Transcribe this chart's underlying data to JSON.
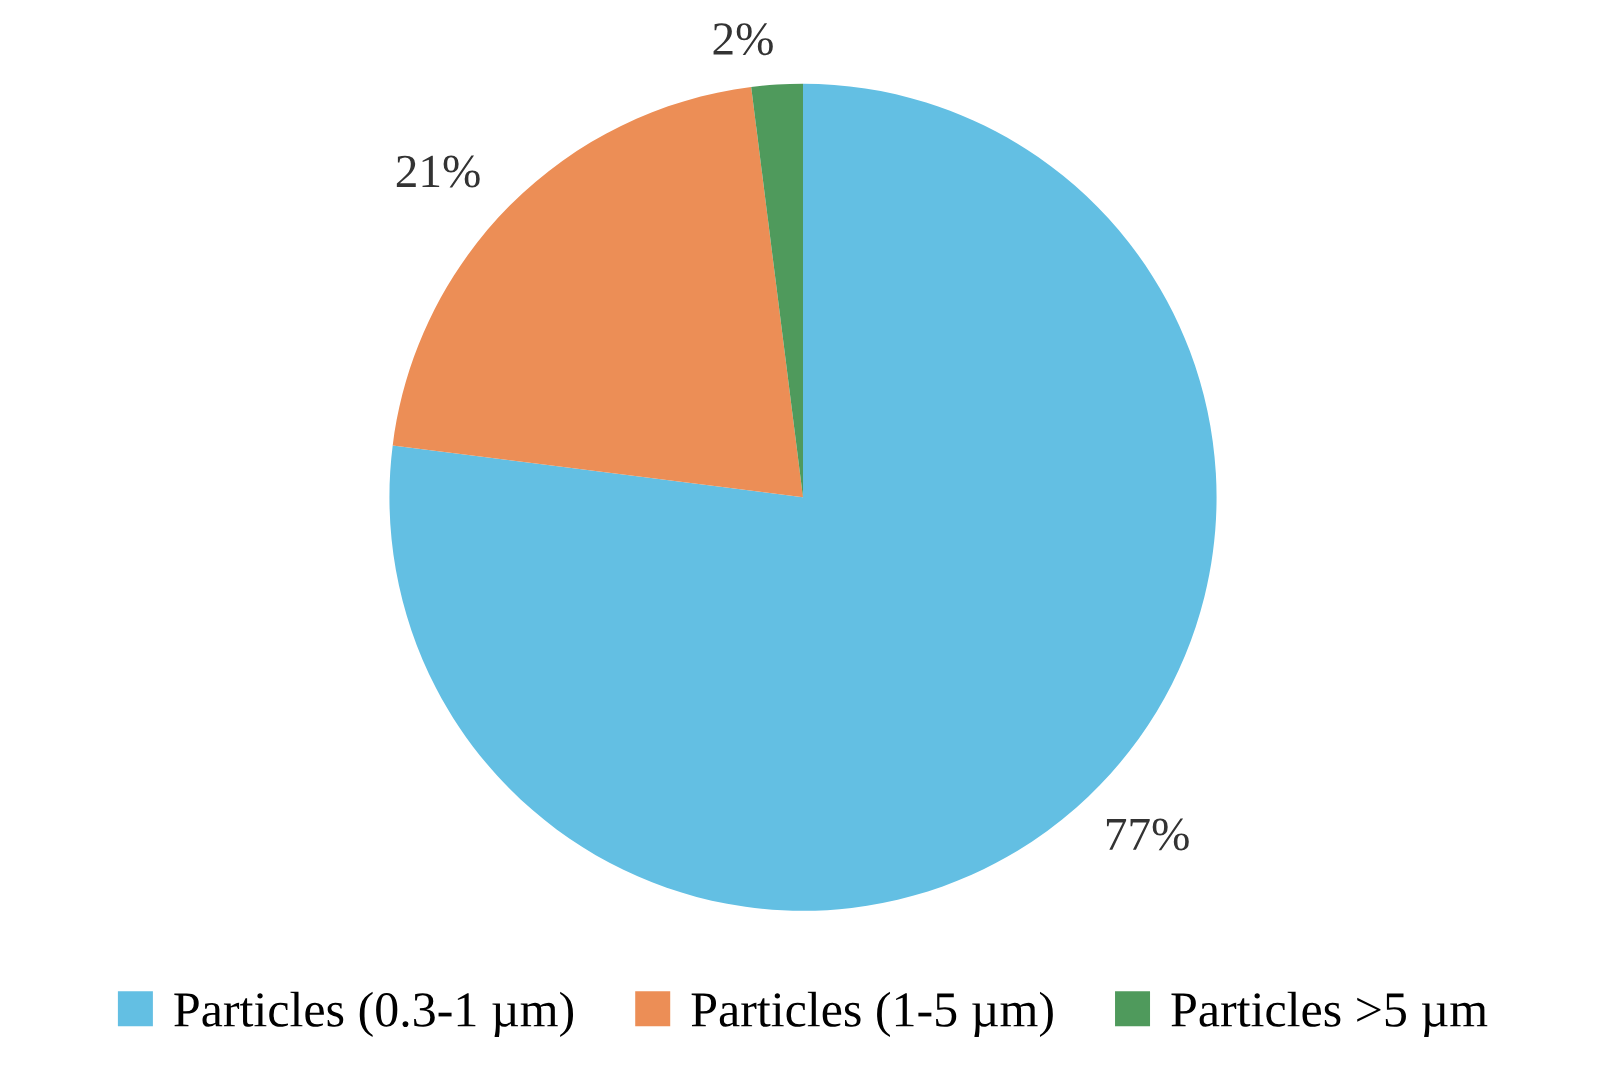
{
  "chart_data": {
    "type": "pie",
    "categories": [
      "Particles (0.3-1 µm)",
      "Particles (1-5 µm)",
      "Particles >5 µm"
    ],
    "values": [
      77,
      21,
      2
    ],
    "colors": [
      "#63bfe3",
      "#ec8e56",
      "#4f9a5c"
    ],
    "value_labels": [
      "77%",
      "21%",
      "2%"
    ],
    "legend": "bottom"
  }
}
